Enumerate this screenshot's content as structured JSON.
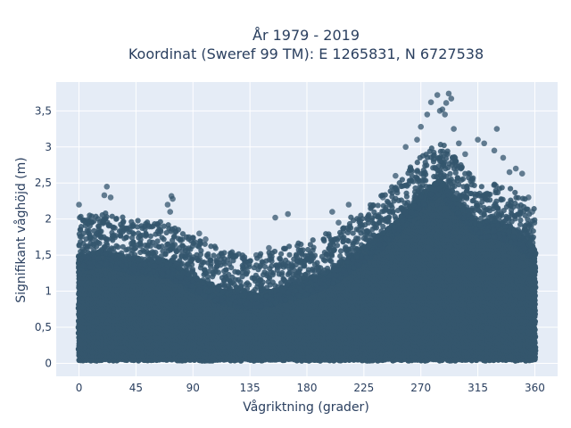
{
  "chart_data": {
    "type": "scatter",
    "title_line1": "År 1979 - 2019",
    "title_line2": "Koordinat (Sweref 99 TM): E 1265831, N 6727538",
    "xlabel": "Vågriktning (grader)",
    "ylabel": "Signifikant våghöjd (m)",
    "xlim": [
      -18,
      378
    ],
    "ylim": [
      -0.18,
      3.9
    ],
    "xticks": [
      0,
      45,
      90,
      135,
      180,
      225,
      270,
      315,
      360
    ],
    "xtick_labels": [
      "0",
      "45",
      "90",
      "135",
      "180",
      "225",
      "270",
      "315",
      "360"
    ],
    "yticks": [
      0,
      0.5,
      1,
      1.5,
      2,
      2.5,
      3,
      3.5
    ],
    "ytick_labels": [
      "0",
      "0,5",
      "1",
      "1,5",
      "2",
      "2,5",
      "3",
      "3,5"
    ],
    "grid": true,
    "marker_color": "#34566d",
    "plot_bg": "#e5ecf6",
    "grid_color": "#ffffff",
    "envelope": {
      "description": "approximate upper edge of the dense point cloud (direction in degrees, height in m)",
      "x": [
        0,
        20,
        45,
        70,
        90,
        110,
        135,
        160,
        180,
        200,
        225,
        250,
        270,
        285,
        300,
        315,
        330,
        345,
        360
      ],
      "y": [
        1.75,
        1.8,
        1.7,
        1.65,
        1.45,
        1.3,
        1.2,
        1.3,
        1.4,
        1.55,
        1.85,
        2.2,
        2.6,
        2.8,
        2.5,
        2.2,
        2.2,
        2.1,
        1.85
      ]
    },
    "outliers": [
      {
        "x": 0,
        "y": 2.2
      },
      {
        "x": 22,
        "y": 2.45
      },
      {
        "x": 25,
        "y": 2.3
      },
      {
        "x": 20,
        "y": 2.33
      },
      {
        "x": 73,
        "y": 2.32
      },
      {
        "x": 74,
        "y": 2.28
      },
      {
        "x": 70,
        "y": 2.2
      },
      {
        "x": 72,
        "y": 2.1
      },
      {
        "x": 100,
        "y": 1.72
      },
      {
        "x": 95,
        "y": 1.8
      },
      {
        "x": 130,
        "y": 1.45
      },
      {
        "x": 140,
        "y": 1.5
      },
      {
        "x": 155,
        "y": 2.02
      },
      {
        "x": 165,
        "y": 2.07
      },
      {
        "x": 150,
        "y": 1.6
      },
      {
        "x": 200,
        "y": 2.1
      },
      {
        "x": 213,
        "y": 2.2
      },
      {
        "x": 205,
        "y": 1.95
      },
      {
        "x": 240,
        "y": 2.3
      },
      {
        "x": 250,
        "y": 2.6
      },
      {
        "x": 258,
        "y": 3.0
      },
      {
        "x": 267,
        "y": 3.1
      },
      {
        "x": 270,
        "y": 3.28
      },
      {
        "x": 275,
        "y": 3.45
      },
      {
        "x": 278,
        "y": 3.62
      },
      {
        "x": 283,
        "y": 3.72
      },
      {
        "x": 285,
        "y": 3.5
      },
      {
        "x": 287,
        "y": 3.52
      },
      {
        "x": 290,
        "y": 3.61
      },
      {
        "x": 292,
        "y": 3.74
      },
      {
        "x": 294,
        "y": 3.67
      },
      {
        "x": 289,
        "y": 3.45
      },
      {
        "x": 296,
        "y": 3.25
      },
      {
        "x": 300,
        "y": 3.05
      },
      {
        "x": 305,
        "y": 2.9
      },
      {
        "x": 315,
        "y": 3.1
      },
      {
        "x": 320,
        "y": 3.05
      },
      {
        "x": 330,
        "y": 3.25
      },
      {
        "x": 328,
        "y": 2.95
      },
      {
        "x": 335,
        "y": 2.85
      },
      {
        "x": 340,
        "y": 2.65
      },
      {
        "x": 345,
        "y": 2.7
      },
      {
        "x": 350,
        "y": 2.63
      },
      {
        "x": 355,
        "y": 2.3
      },
      {
        "x": 358,
        "y": 2.1
      }
    ]
  }
}
